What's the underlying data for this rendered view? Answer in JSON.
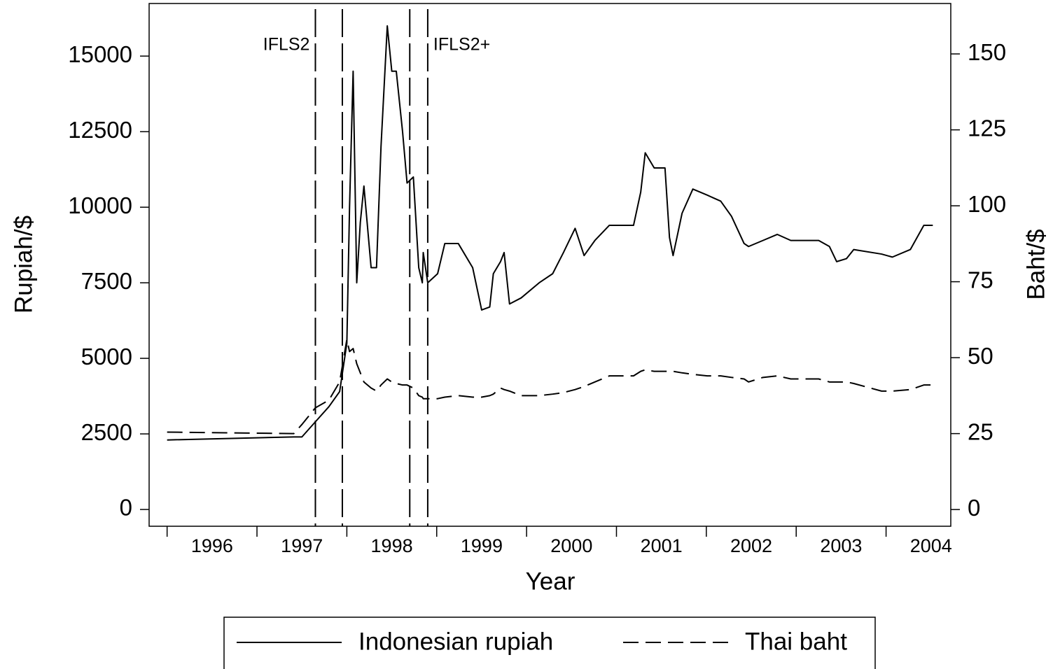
{
  "chart_data": {
    "type": "line",
    "x_label": "Year",
    "y_label": "Rupiah/$",
    "y2_label": "Baht/$",
    "x": [
      1995.5,
      1996.91,
      1997.0,
      1997.15,
      1997.3,
      1997.42,
      1997.5,
      1997.53,
      1997.57,
      1997.61,
      1997.65,
      1997.69,
      1997.77,
      1997.83,
      1997.88,
      1997.95,
      1998.0,
      1998.05,
      1998.12,
      1998.17,
      1998.24,
      1998.3,
      1998.34,
      1998.35,
      1998.4,
      1998.51,
      1998.59,
      1998.74,
      1998.9,
      1999.0,
      1999.09,
      1999.13,
      1999.21,
      1999.25,
      1999.31,
      1999.44,
      1999.64,
      1999.79,
      1999.91,
      2000.04,
      2000.14,
      2000.26,
      2000.42,
      2000.69,
      2000.77,
      2000.82,
      2000.92,
      2001.04,
      2001.09,
      2001.13,
      2001.23,
      2001.35,
      2001.51,
      2001.66,
      2001.78,
      2001.92,
      2001.97,
      2002.13,
      2002.29,
      2002.44,
      2002.75,
      2002.87,
      2002.95,
      2003.06,
      2003.14,
      2003.45,
      2003.57,
      2003.77,
      2003.92,
      2004.02
    ],
    "series": [
      {
        "name": "Indonesian rupiah",
        "color": "#000000",
        "dash": false,
        "axis": "y",
        "values": [
          2300,
          2400,
          2400,
          2900,
          3400,
          3900,
          5500,
          10000,
          14500,
          7500,
          9500,
          10700,
          8000,
          8000,
          12000,
          16000,
          14500,
          14500,
          12500,
          10800,
          11000,
          8000,
          7500,
          8500,
          7500,
          7800,
          8800,
          8800,
          8000,
          6600,
          6700,
          7800,
          8200,
          8500,
          6800,
          7000,
          7500,
          7800,
          8500,
          9300,
          8400,
          8900,
          9400,
          9400,
          10500,
          11800,
          11300,
          11300,
          9000,
          8400,
          9800,
          10600,
          10400,
          10200,
          9700,
          8800,
          8700,
          8900,
          9100,
          8900,
          8900,
          8700,
          8200,
          8300,
          8600,
          8450,
          8350,
          8600,
          9400,
          9400
        ]
      },
      {
        "name": "Thai baht",
        "color": "#000000",
        "dash": true,
        "axis": "y2",
        "values": [
          25.5,
          25,
          28,
          33.5,
          36,
          42,
          56,
          52,
          53,
          48,
          45,
          42,
          40,
          39,
          41,
          43,
          42,
          41.5,
          41,
          41,
          40,
          37.5,
          37,
          36.5,
          36.5,
          36.5,
          37,
          37.5,
          37,
          37,
          37.5,
          38,
          40,
          39.5,
          39,
          37.5,
          37.5,
          38,
          38.5,
          39.5,
          40.5,
          42,
          44,
          44,
          45.5,
          46,
          45.5,
          45.5,
          45.5,
          45.5,
          45,
          44.5,
          44,
          44,
          43.5,
          43,
          42,
          43.5,
          44,
          43,
          43,
          42,
          42,
          42,
          41.5,
          39,
          39,
          39.5,
          41,
          41
        ]
      }
    ],
    "xlim": [
      1995.3,
      2004.22
    ],
    "xticks": [
      1996,
      1997,
      1998,
      1999,
      2000,
      2001,
      2002,
      2003,
      2004
    ],
    "x_minor_ticks": [
      1995.5,
      1996.5,
      1997.5,
      1998.5,
      1999.5,
      2000.5,
      2001.5,
      2002.5,
      2003.5
    ],
    "ylim": [
      -555,
      16740
    ],
    "yticks": [
      0,
      2500,
      5000,
      7500,
      10000,
      12500,
      15000
    ],
    "y2lim": [
      -5.5,
      166.6
    ],
    "y2ticks": [
      0,
      25,
      50,
      75,
      100,
      125,
      150
    ],
    "vlines": [
      1997.15,
      1997.45,
      1998.2,
      1998.4
    ],
    "annotations": [
      {
        "text": "IFLS2"
      },
      {
        "text": "IFLS2+"
      }
    ],
    "grid": false
  }
}
